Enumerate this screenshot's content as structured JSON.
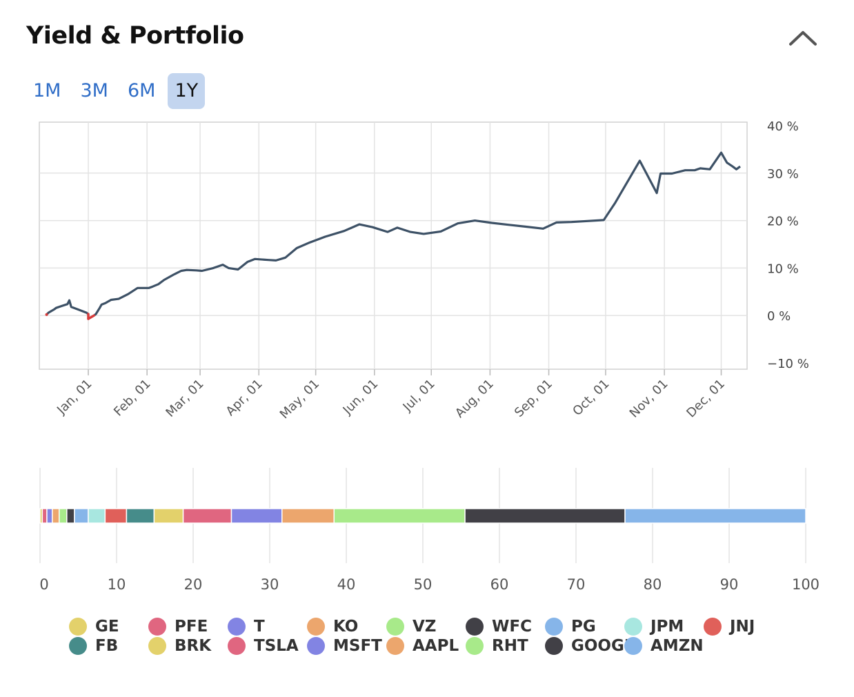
{
  "header": {
    "title": "Yield & Portfolio"
  },
  "tabs": [
    {
      "label": "1M",
      "active": false
    },
    {
      "label": "3M",
      "active": false
    },
    {
      "label": "6M",
      "active": false
    },
    {
      "label": "1Y",
      "active": true
    }
  ],
  "colors": {
    "line": "#3d5166",
    "negative": "#d93a3a",
    "grid": "#e3e3e3",
    "tab_accent": "#2f6dc7"
  },
  "chart_data": [
    {
      "type": "line",
      "title": "",
      "xlabel": "",
      "ylabel": "",
      "ylim": [
        -10,
        40
      ],
      "y_ticks": [
        "40 %",
        "30 %",
        "20 %",
        "10 %",
        "0 %",
        "−10 %"
      ],
      "y_tick_values": [
        40,
        30,
        20,
        10,
        0,
        -10
      ],
      "x_ticks": [
        "Jan, 01",
        "Feb, 01",
        "Mar, 01",
        "Apr, 01",
        "May, 01",
        "Jun, 01",
        "Jul, 01",
        "Aug, 01",
        "Sep, 01",
        "Oct, 01",
        "Nov, 01",
        "Dec, 01"
      ],
      "x_tick_days": [
        0,
        31,
        59,
        90,
        120,
        151,
        181,
        212,
        243,
        273,
        304,
        334
      ],
      "xlim_days": [
        -25,
        344
      ],
      "grid": true,
      "series": [
        {
          "points": [
            [
              -22,
              0.2
            ],
            [
              -21,
              0.6
            ],
            [
              -18,
              1.3
            ],
            [
              -17,
              1.6
            ],
            [
              -14,
              2.0
            ],
            [
              -11,
              2.4
            ],
            [
              -10,
              3.2
            ],
            [
              -9,
              1.8
            ],
            [
              -5,
              1.2
            ],
            [
              -1,
              0.6
            ],
            [
              0,
              0.3
            ],
            [
              0,
              -0.7
            ],
            [
              3,
              0.0
            ],
            [
              4,
              0.3
            ],
            [
              6,
              1.6
            ],
            [
              7,
              2.3
            ],
            [
              9,
              2.6
            ],
            [
              12,
              3.3
            ],
            [
              16,
              3.5
            ],
            [
              21,
              4.5
            ],
            [
              26,
              5.8
            ],
            [
              32,
              5.8
            ],
            [
              34,
              6.1
            ],
            [
              37,
              6.6
            ],
            [
              40,
              7.5
            ],
            [
              45,
              8.6
            ],
            [
              49,
              9.4
            ],
            [
              52,
              9.6
            ],
            [
              57,
              9.5
            ],
            [
              60,
              9.4
            ],
            [
              66,
              10.0
            ],
            [
              71,
              10.7
            ],
            [
              74,
              10.0
            ],
            [
              79,
              9.7
            ],
            [
              84,
              11.3
            ],
            [
              88,
              11.9
            ],
            [
              95,
              11.7
            ],
            [
              99,
              11.6
            ],
            [
              104,
              12.2
            ],
            [
              110,
              14.2
            ],
            [
              117,
              15.4
            ],
            [
              125,
              16.6
            ],
            [
              135,
              17.8
            ],
            [
              143,
              19.2
            ],
            [
              150,
              18.6
            ],
            [
              158,
              17.6
            ],
            [
              163,
              18.5
            ],
            [
              170,
              17.6
            ],
            [
              177,
              17.2
            ],
            [
              186,
              17.7
            ],
            [
              195,
              19.4
            ],
            [
              204,
              20.0
            ],
            [
              213,
              19.5
            ],
            [
              222,
              19.1
            ],
            [
              231,
              18.7
            ],
            [
              240,
              18.3
            ],
            [
              247,
              19.6
            ],
            [
              255,
              19.7
            ],
            [
              272,
              20.1
            ],
            [
              278,
              23.7
            ],
            [
              291,
              32.6
            ],
            [
              300,
              25.8
            ],
            [
              302,
              29.9
            ],
            [
              308,
              29.9
            ],
            [
              315,
              30.6
            ],
            [
              320,
              30.6
            ],
            [
              323,
              31.0
            ],
            [
              328,
              30.8
            ],
            [
              334,
              34.3
            ],
            [
              337,
              32.2
            ],
            [
              340,
              31.4
            ],
            [
              342,
              30.8
            ],
            [
              344,
              31.4
            ]
          ]
        }
      ]
    },
    {
      "type": "bar",
      "title": "",
      "xlim": [
        0,
        100
      ],
      "x_ticks": [
        "0",
        "10",
        "20",
        "30",
        "40",
        "50",
        "60",
        "70",
        "80",
        "90",
        "100"
      ],
      "x_tick_values": [
        0,
        10,
        20,
        30,
        40,
        50,
        60,
        70,
        80,
        90,
        100
      ],
      "grid": true,
      "legend_position": "bottom",
      "series": [
        {
          "name": "GE",
          "value": 0.3,
          "color": "#e3d16b"
        },
        {
          "name": "PFE",
          "value": 0.6,
          "color": "#e06680"
        },
        {
          "name": "T",
          "value": 0.7,
          "color": "#8284e3"
        },
        {
          "name": "KO",
          "value": 0.9,
          "color": "#eca66d"
        },
        {
          "name": "VZ",
          "value": 1.0,
          "color": "#a8ea8a"
        },
        {
          "name": "WFC",
          "value": 1.0,
          "color": "#414046"
        },
        {
          "name": "PG",
          "value": 1.8,
          "color": "#86b5e9"
        },
        {
          "name": "JPM",
          "value": 2.2,
          "color": "#a8e7e0"
        },
        {
          "name": "JNJ",
          "value": 2.8,
          "color": "#e0605a"
        },
        {
          "name": "FB",
          "value": 3.6,
          "color": "#468c8a"
        },
        {
          "name": "BRK",
          "value": 3.8,
          "color": "#e3d16b"
        },
        {
          "name": "TSLA",
          "value": 6.3,
          "color": "#e06680"
        },
        {
          "name": "MSFT",
          "value": 6.6,
          "color": "#8284e3"
        },
        {
          "name": "AAPL",
          "value": 6.8,
          "color": "#eca66d"
        },
        {
          "name": "RHT",
          "value": 17.1,
          "color": "#a8ea8a"
        },
        {
          "name": "GOOGL",
          "value": 20.9,
          "color": "#414046"
        },
        {
          "name": "AMZN",
          "value": 23.6,
          "color": "#86b5e9"
        }
      ]
    }
  ]
}
